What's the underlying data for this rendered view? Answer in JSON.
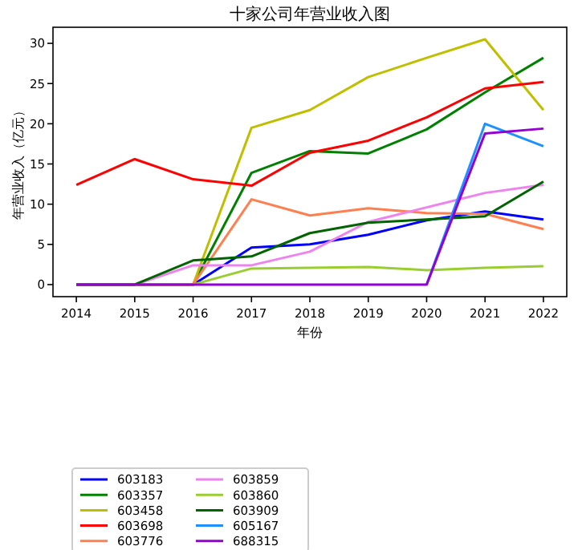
{
  "chart_data": {
    "type": "line",
    "title": "十家公司年营业收入图",
    "xlabel": "年份",
    "ylabel": "年营业收入（亿元）",
    "x": [
      2014,
      2015,
      2016,
      2017,
      2018,
      2019,
      2020,
      2021,
      2022
    ],
    "xlim": [
      2013.6,
      2022.4
    ],
    "xticks": [
      2014,
      2015,
      2016,
      2017,
      2018,
      2019,
      2020,
      2021,
      2022
    ],
    "ylim": [
      -1.5,
      32
    ],
    "yticks": [
      0,
      5,
      10,
      15,
      20,
      25,
      30
    ],
    "grid": false,
    "legend": "bottom",
    "marker": "none",
    "line_style": "solid",
    "series": [
      {
        "name": "603183",
        "color": "#0000ff",
        "values": [
          0,
          0,
          0,
          4.6,
          5.0,
          6.2,
          8.0,
          9.1,
          8.1
        ]
      },
      {
        "name": "603357",
        "color": "#008000",
        "values": [
          0,
          0,
          0,
          13.9,
          16.6,
          16.3,
          19.3,
          23.9,
          28.2
        ]
      },
      {
        "name": "603458",
        "color": "#bfbf00",
        "values": [
          0,
          0,
          0,
          19.5,
          21.7,
          25.8,
          28.2,
          30.5,
          21.7
        ]
      },
      {
        "name": "603698",
        "color": "#ff0000",
        "values": [
          12.4,
          15.6,
          13.1,
          12.3,
          16.4,
          17.9,
          20.8,
          24.4,
          25.2
        ]
      },
      {
        "name": "603776",
        "color": "#ff7f50",
        "values": [
          0,
          0,
          0,
          10.6,
          8.6,
          9.5,
          8.9,
          8.8,
          6.9
        ]
      },
      {
        "name": "603859",
        "color": "#ee82ee",
        "values": [
          0,
          0,
          2.4,
          2.4,
          4.1,
          7.8,
          9.6,
          11.4,
          12.4
        ]
      },
      {
        "name": "603860",
        "color": "#9acd32",
        "values": [
          0,
          0,
          0,
          2.0,
          2.1,
          2.2,
          1.8,
          2.1,
          2.3
        ]
      },
      {
        "name": "603909",
        "color": "#006400",
        "values": [
          0,
          0,
          3.0,
          3.5,
          6.4,
          7.7,
          8.1,
          8.5,
          12.8
        ]
      },
      {
        "name": "605167",
        "color": "#1e90ff",
        "values": [
          null,
          null,
          null,
          null,
          null,
          null,
          0,
          20.0,
          17.2
        ]
      },
      {
        "name": "688315",
        "color": "#9400d3",
        "values": [
          0,
          0,
          0,
          0,
          0,
          0,
          0,
          18.8,
          19.4
        ]
      }
    ]
  }
}
